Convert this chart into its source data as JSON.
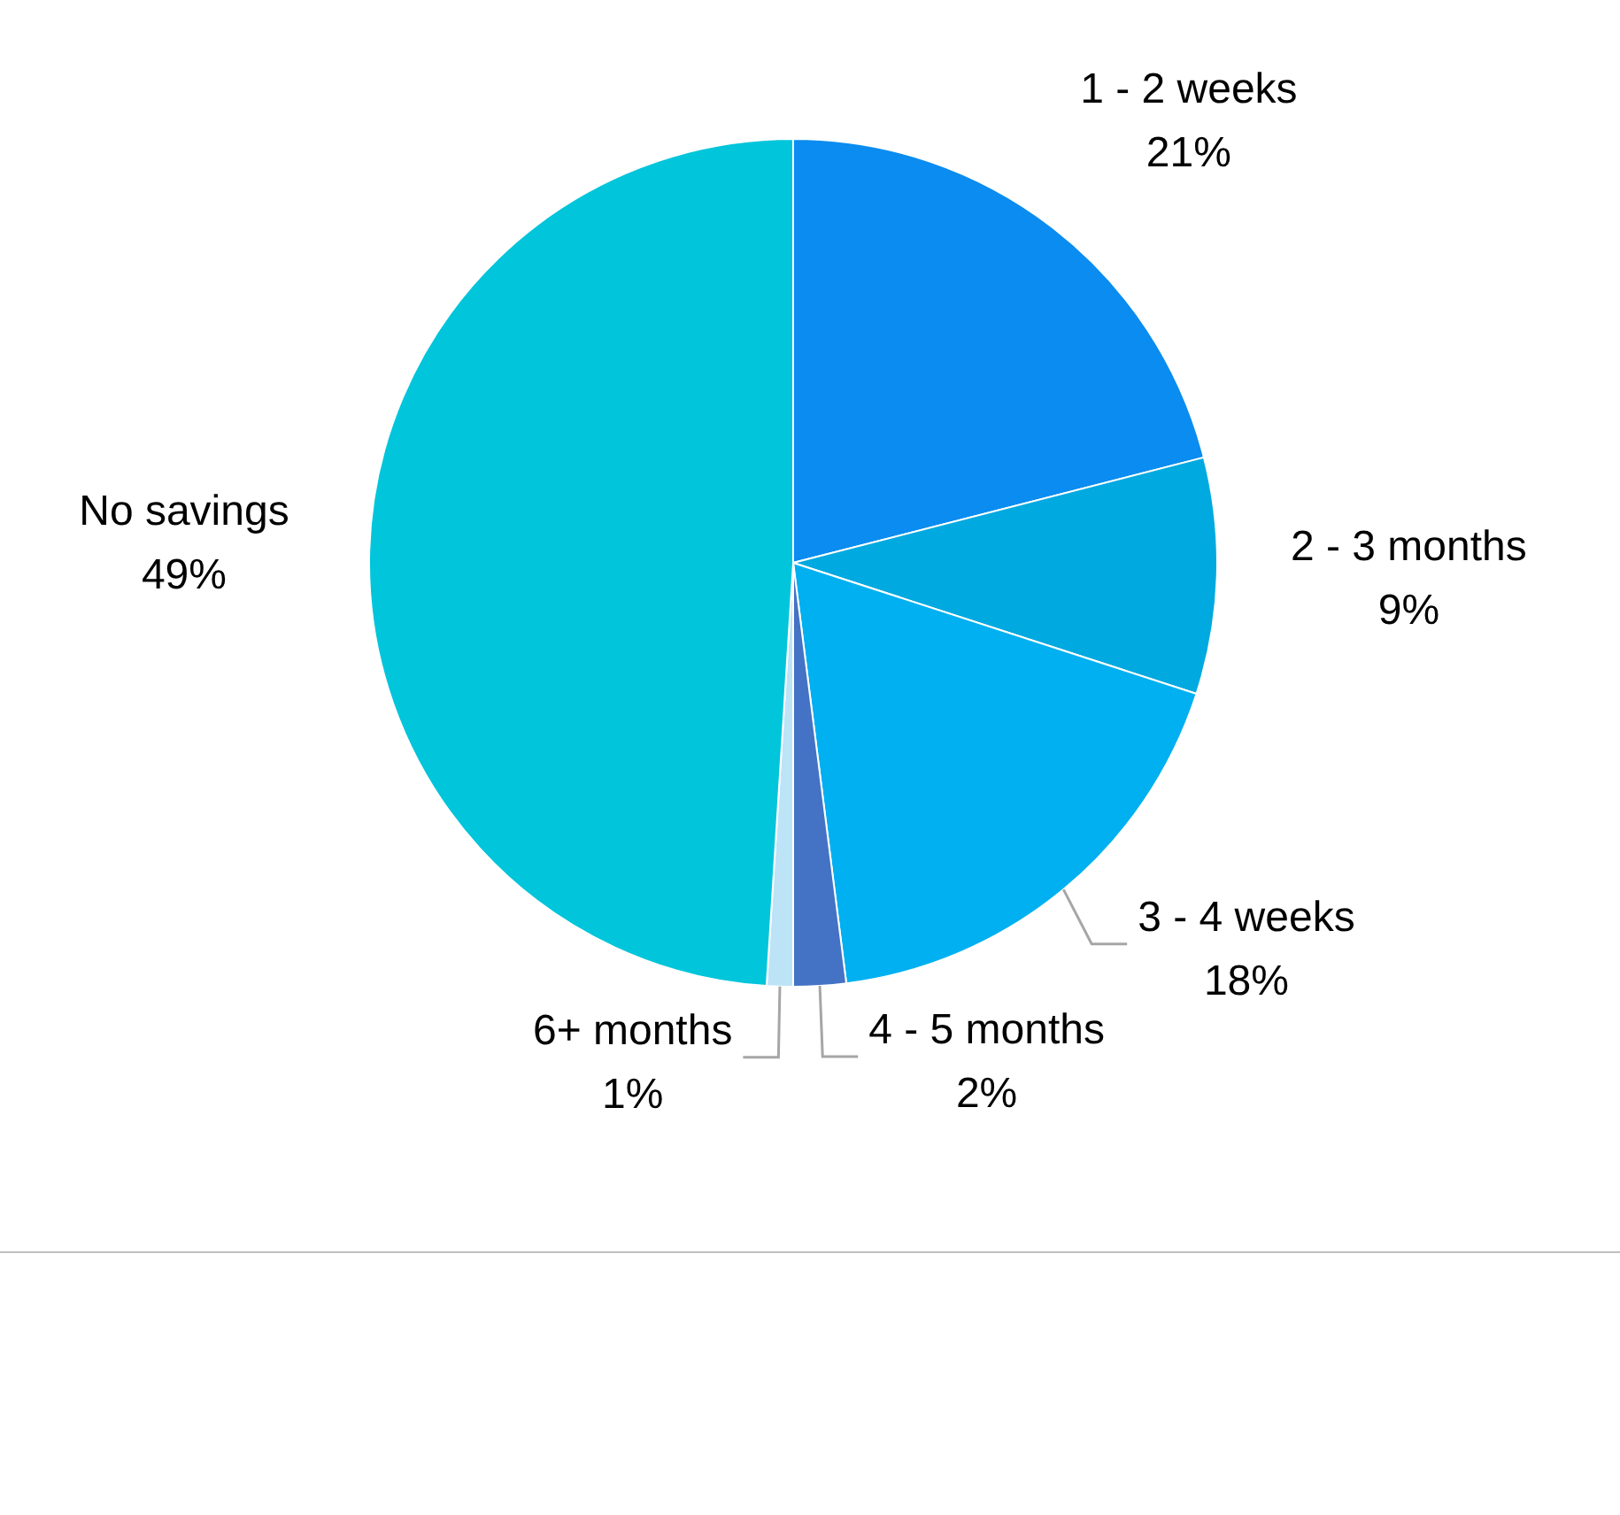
{
  "chart_data": {
    "type": "pie",
    "categories": [
      "1 - 2 weeks",
      "2 - 3 months",
      "3 - 4 weeks",
      "4 - 5 months",
      "6+ months",
      "No savings"
    ],
    "values": [
      21,
      9,
      18,
      2,
      1,
      49
    ],
    "value_labels": [
      "21%",
      "9%",
      "18%",
      "2%",
      "1%",
      "49%"
    ],
    "colors": [
      "#0a8cf0",
      "#00a9e0",
      "#00b0f0",
      "#4472c4",
      "#bde3f7",
      "#00c5db"
    ],
    "legend": false
  }
}
